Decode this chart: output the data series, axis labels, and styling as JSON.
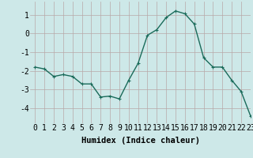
{
  "x": [
    0,
    1,
    2,
    3,
    4,
    5,
    6,
    7,
    8,
    9,
    10,
    11,
    12,
    13,
    14,
    15,
    16,
    17,
    18,
    19,
    20,
    21,
    22,
    23
  ],
  "y": [
    -1.8,
    -1.9,
    -2.3,
    -2.2,
    -2.3,
    -2.7,
    -2.7,
    -3.4,
    -3.35,
    -3.5,
    -2.5,
    -1.6,
    -0.1,
    0.2,
    0.85,
    1.2,
    1.05,
    0.5,
    -1.3,
    -1.8,
    -1.8,
    -2.5,
    -3.1,
    -4.4
  ],
  "line_color": "#1a6b5a",
  "marker": "+",
  "marker_size": 3,
  "marker_lw": 0.8,
  "bg_color": "#cde8e8",
  "grid_color": "#b8a8a8",
  "xlabel": "Humidex (Indice chaleur)",
  "xlim": [
    -0.5,
    23
  ],
  "ylim": [
    -4.8,
    1.7
  ],
  "yticks": [
    -4,
    -3,
    -2,
    -1,
    0,
    1
  ],
  "xticks": [
    0,
    1,
    2,
    3,
    4,
    5,
    6,
    7,
    8,
    9,
    10,
    11,
    12,
    13,
    14,
    15,
    16,
    17,
    18,
    19,
    20,
    21,
    22,
    23
  ],
  "xlabel_fontsize": 7.5,
  "tick_fontsize": 7,
  "linewidth": 1.0
}
